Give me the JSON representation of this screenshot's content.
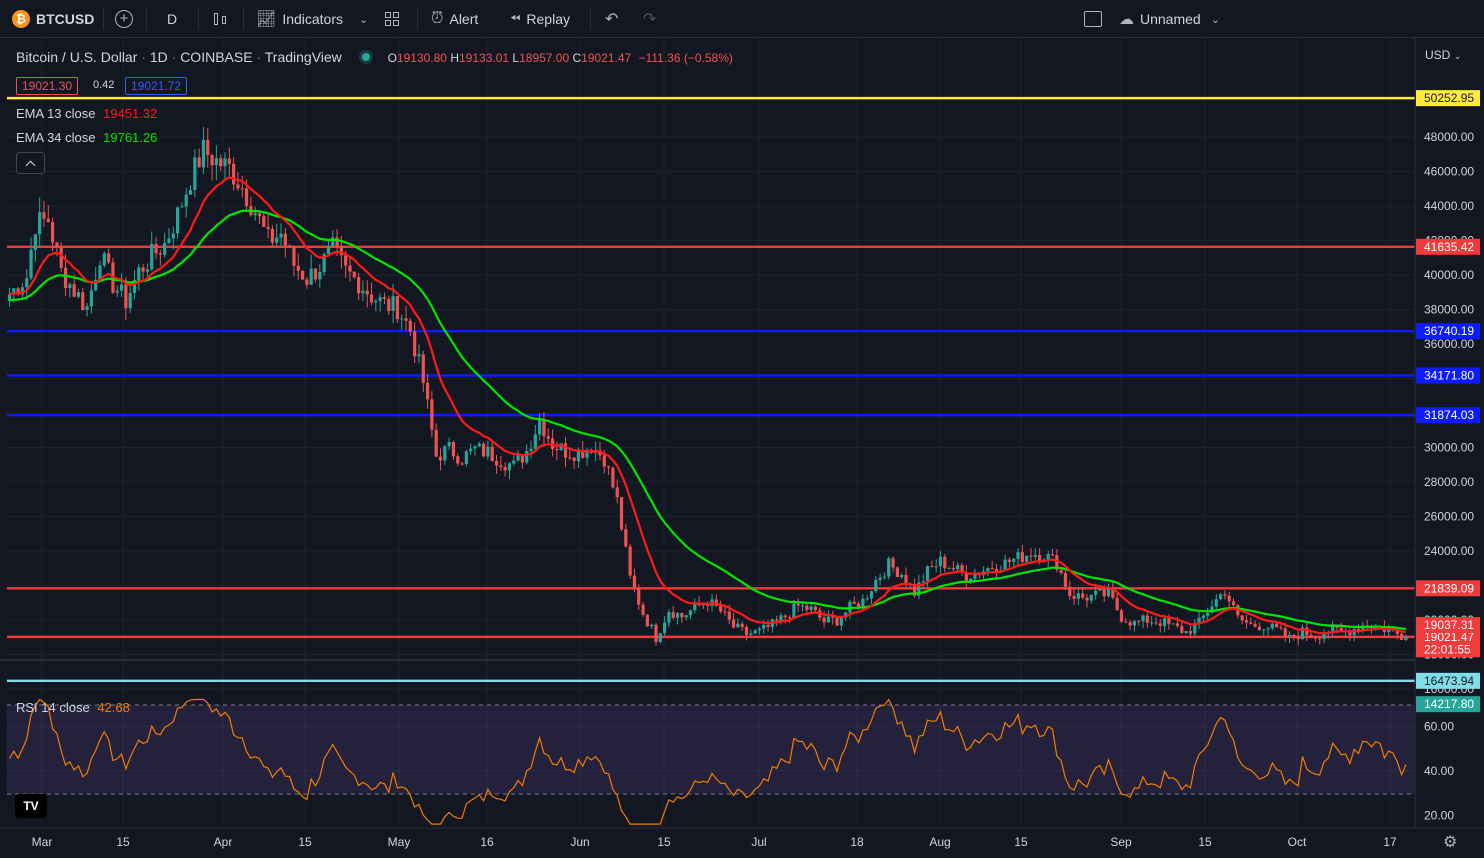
{
  "toolbar": {
    "symbol": "BTCUSD",
    "interval": "D",
    "indicators_label": "Indicators",
    "alert_label": "Alert",
    "replay_label": "Replay",
    "layout_name": "Unnamed"
  },
  "header": {
    "title": "Bitcoin / U.S. Dollar",
    "interval": "1D",
    "exchange": "COINBASE",
    "publisher": "TradingView",
    "o_label": "O",
    "o_value": "19130.80",
    "h_label": "H",
    "h_value": "19133.01",
    "l_label": "L",
    "l_value": "18957.00",
    "c_label": "C",
    "c_value": "19021.47",
    "change": "−111.36 (−0.58%)",
    "sell_price": "19021.30",
    "spread": "0.42",
    "buy_price": "19021.72"
  },
  "indicators": {
    "ema13_label": "EMA 13 close",
    "ema13_value": "19451.32",
    "ema34_label": "EMA 34 close",
    "ema34_value": "19761.26",
    "rsi_label": "RSI 14 close",
    "rsi_value": "42.68"
  },
  "colors": {
    "background": "#131722",
    "up": "#26a69a",
    "down": "#ef5350",
    "ema13": "#ff1a1a",
    "ema34": "#00e600",
    "rsi": "#f57c00",
    "blue_line": "#0d1bff",
    "red_line": "#ef3b3b",
    "yellow_line": "#ffeb3b",
    "cyan_line": "#80deea"
  },
  "chart_data": {
    "type": "candlestick",
    "price_axis": {
      "range": [
        15300,
        50800
      ],
      "ticks": [
        "48000.00",
        "46000.00",
        "44000.00",
        "42000.00",
        "40000.00",
        "38000.00",
        "36000.00",
        "34000.00",
        "32000.00",
        "30000.00",
        "28000.00",
        "26000.00",
        "24000.00",
        "22000.00",
        "20000.00",
        "18000.00",
        "16000.00"
      ],
      "currency": "USD"
    },
    "time_axis": {
      "ticks": [
        "Mar",
        "15",
        "Apr",
        "15",
        "May",
        "16",
        "Jun",
        "15",
        "Jul",
        "18",
        "Aug",
        "15",
        "Sep",
        "15",
        "Oct",
        "17"
      ]
    },
    "horizontal_levels": [
      {
        "price": 50252.95,
        "label": "50252.95",
        "color": "#ffeb3b"
      },
      {
        "price": 41635.42,
        "label": "41635.42",
        "color": "#ef3b3b"
      },
      {
        "price": 36740.19,
        "label": "36740.19",
        "color": "#0d1bff"
      },
      {
        "price": 34171.8,
        "label": "34171.80",
        "color": "#0d1bff"
      },
      {
        "price": 31874.03,
        "label": "31874.03",
        "color": "#0d1bff"
      },
      {
        "price": 21839.09,
        "label": "21839.09",
        "color": "#ef3b3b"
      },
      {
        "price": 19021.47,
        "label": "19021.47",
        "color": "#ef3b3b"
      },
      {
        "price": 16473.94,
        "label": "16473.94",
        "color": "#80deea"
      }
    ],
    "extra_price_labels": [
      {
        "label": "19037.31",
        "color": "#ef3b3b"
      },
      {
        "label": "22:01:55",
        "color": "#ef3b3b"
      },
      {
        "label": "14217.80",
        "color": "#26a69a"
      }
    ],
    "close_path": [
      [
        0,
        38900
      ],
      [
        4,
        39900
      ],
      [
        6,
        43000
      ],
      [
        9,
        43200
      ],
      [
        12,
        40200
      ],
      [
        15,
        39100
      ],
      [
        18,
        38100
      ],
      [
        21,
        41200
      ],
      [
        24,
        39500
      ],
      [
        27,
        38500
      ],
      [
        30,
        40200
      ],
      [
        33,
        41100
      ],
      [
        36,
        41800
      ],
      [
        39,
        43500
      ],
      [
        42,
        45600
      ],
      [
        45,
        47200
      ],
      [
        48,
        46600
      ],
      [
        51,
        46200
      ],
      [
        54,
        45100
      ],
      [
        57,
        43700
      ],
      [
        60,
        42000
      ],
      [
        63,
        42400
      ],
      [
        66,
        40600
      ],
      [
        69,
        39800
      ],
      [
        72,
        40500
      ],
      [
        75,
        41500
      ],
      [
        78,
        40200
      ],
      [
        81,
        39600
      ],
      [
        84,
        38800
      ],
      [
        87,
        38300
      ],
      [
        90,
        38100
      ],
      [
        93,
        36800
      ],
      [
        96,
        33800
      ],
      [
        99,
        29500
      ],
      [
        102,
        29900
      ],
      [
        105,
        29400
      ],
      [
        108,
        29900
      ],
      [
        111,
        29700
      ],
      [
        114,
        29300
      ],
      [
        117,
        28900
      ],
      [
        120,
        29800
      ],
      [
        123,
        31600
      ],
      [
        126,
        30200
      ],
      [
        129,
        29800
      ],
      [
        132,
        29700
      ],
      [
        135,
        30100
      ],
      [
        138,
        29400
      ],
      [
        141,
        26900
      ],
      [
        144,
        22400
      ],
      [
        147,
        20400
      ],
      [
        150,
        19000
      ],
      [
        153,
        20600
      ],
      [
        156,
        20200
      ],
      [
        159,
        20700
      ],
      [
        162,
        21100
      ],
      [
        165,
        20500
      ],
      [
        168,
        19600
      ],
      [
        171,
        19200
      ],
      [
        174,
        19300
      ],
      [
        177,
        19700
      ],
      [
        180,
        20200
      ],
      [
        183,
        20800
      ],
      [
        186,
        20600
      ],
      [
        189,
        19900
      ],
      [
        192,
        20000
      ],
      [
        195,
        20700
      ],
      [
        198,
        21100
      ],
      [
        201,
        22300
      ],
      [
        204,
        23200
      ],
      [
        207,
        22700
      ],
      [
        210,
        21600
      ],
      [
        213,
        22800
      ],
      [
        216,
        23400
      ],
      [
        219,
        23000
      ],
      [
        222,
        22600
      ],
      [
        225,
        22800
      ],
      [
        228,
        23100
      ],
      [
        231,
        23300
      ],
      [
        234,
        23600
      ],
      [
        237,
        23900
      ],
      [
        240,
        23800
      ],
      [
        243,
        23300
      ],
      [
        246,
        21500
      ],
      [
        249,
        21300
      ],
      [
        252,
        21400
      ],
      [
        255,
        21500
      ],
      [
        258,
        20200
      ],
      [
        261,
        19800
      ],
      [
        264,
        20000
      ],
      [
        267,
        19900
      ],
      [
        270,
        19600
      ],
      [
        273,
        19300
      ],
      [
        276,
        19800
      ],
      [
        279,
        20900
      ],
      [
        282,
        21700
      ],
      [
        285,
        20100
      ],
      [
        288,
        19700
      ],
      [
        291,
        19700
      ],
      [
        294,
        19400
      ],
      [
        297,
        18900
      ],
      [
        300,
        19300
      ],
      [
        303,
        19100
      ],
      [
        306,
        19400
      ],
      [
        309,
        19300
      ],
      [
        312,
        19500
      ],
      [
        315,
        19800
      ],
      [
        318,
        19600
      ],
      [
        321,
        19300
      ],
      [
        324,
        19021
      ]
    ],
    "candle_count": 325,
    "ema13_last": 19451.32,
    "ema34_last": 19761.26,
    "rsi": {
      "range": [
        15,
        72
      ],
      "ticks": [
        "60.00",
        "40.00",
        "20.00"
      ],
      "upper_band": 70,
      "lower_band": 30,
      "last": 42.68
    }
  }
}
